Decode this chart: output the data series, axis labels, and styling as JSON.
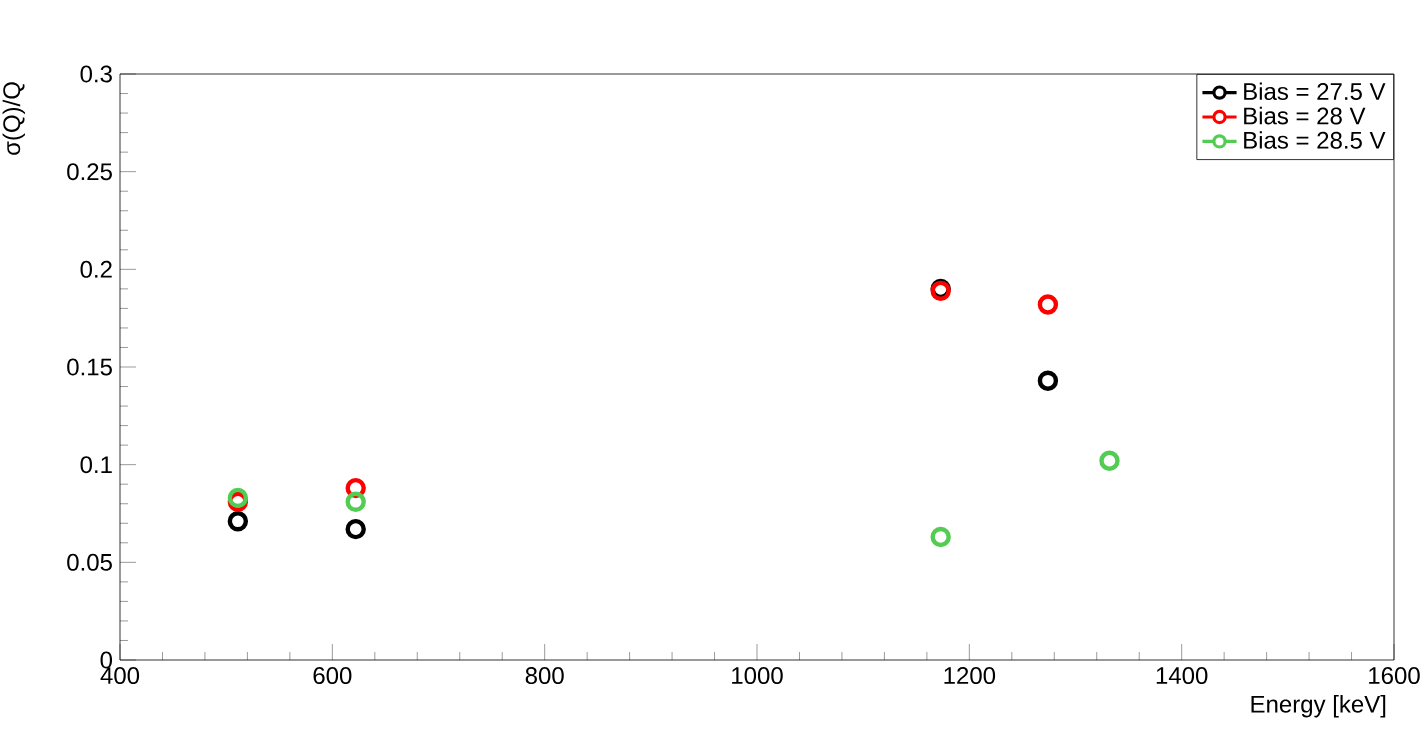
{
  "chart_data": {
    "type": "scatter",
    "xlabel": "Energy [keV]",
    "ylabel": "σ(Q)/Q",
    "series": [
      {
        "name": "Bias = 27.5 V",
        "color": "#000000",
        "x": [
          511,
          622,
          1173,
          1274
        ],
        "values": [
          0.071,
          0.067,
          0.19,
          0.143
        ]
      },
      {
        "name": "Bias = 28 V",
        "color": "#ff0000",
        "x": [
          511,
          622,
          1173,
          1274
        ],
        "values": [
          0.081,
          0.088,
          0.189,
          0.182
        ]
      },
      {
        "name": "Bias = 28.5 V",
        "color": "#52cc52",
        "x": [
          511,
          622,
          1173,
          1332
        ],
        "values": [
          0.083,
          0.081,
          0.063,
          0.102
        ]
      }
    ],
    "xlim": [
      400,
      1600
    ],
    "ylim": [
      0,
      0.3
    ],
    "xticks": [
      400,
      600,
      800,
      1000,
      1200,
      1400,
      1600
    ],
    "yticks": [
      0,
      0.05,
      0.1,
      0.15,
      0.2,
      0.25,
      0.3
    ],
    "marker": "circle",
    "legend": "top right",
    "grid": false
  }
}
